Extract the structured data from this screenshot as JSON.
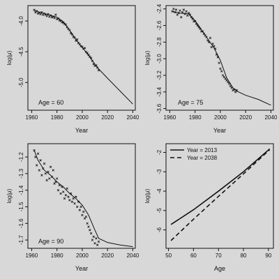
{
  "chart_data": [
    {
      "type": "scatter",
      "xlabel": "Year",
      "ylabel": "log(μ)",
      "annotation": "Age = 60",
      "xlim": [
        1957,
        2042
      ],
      "ylim": [
        -5.45,
        -3.75
      ],
      "xticks": [
        1960,
        1980,
        2000,
        2020,
        2040
      ],
      "xtick_labels": [
        "1960",
        "1980",
        "2000",
        "2020",
        "2040"
      ],
      "yticks": [
        -4.0,
        -4.5,
        -5.0
      ],
      "ytick_labels": [
        "-4.0",
        "-4.5",
        "-5.0"
      ],
      "series": [
        {
          "kind": "points",
          "x": [
            1962,
            1963,
            1964,
            1965,
            1966,
            1967,
            1968,
            1969,
            1970,
            1971,
            1972,
            1973,
            1974,
            1975,
            1976,
            1977,
            1978,
            1979,
            1980,
            1981,
            1982,
            1983,
            1984,
            1985,
            1986,
            1987,
            1988,
            1989,
            1990,
            1991,
            1992,
            1993,
            1994,
            1995,
            1996,
            1997,
            1998,
            1999,
            2000,
            2001,
            2002,
            2003,
            2004,
            2005,
            2006,
            2007,
            2008,
            2009,
            2010,
            2011,
            2012,
            2013
          ],
          "y": [
            -3.82,
            -3.86,
            -3.84,
            -3.88,
            -3.87,
            -3.89,
            -3.86,
            -3.9,
            -3.88,
            -3.9,
            -3.92,
            -3.89,
            -3.93,
            -3.91,
            -3.94,
            -3.93,
            -3.95,
            -3.9,
            -3.97,
            -3.96,
            -3.99,
            -4.0,
            -4.02,
            -4.03,
            -4.05,
            -4.06,
            -4.1,
            -4.13,
            -4.15,
            -4.2,
            -4.22,
            -4.26,
            -4.27,
            -4.32,
            -4.3,
            -4.36,
            -4.38,
            -4.41,
            -4.42,
            -4.45,
            -4.44,
            -4.5,
            -4.52,
            -4.55,
            -4.58,
            -4.6,
            -4.65,
            -4.7,
            -4.73,
            -4.72,
            -4.76,
            -4.8
          ]
        },
        {
          "kind": "line",
          "x": [
            1962,
            1970,
            1980,
            1985,
            1990,
            1995,
            2000,
            2005,
            2010,
            2013,
            2020,
            2030,
            2040
          ],
          "y": [
            -3.83,
            -3.88,
            -3.94,
            -4.01,
            -4.15,
            -4.3,
            -4.43,
            -4.56,
            -4.7,
            -4.78,
            -4.93,
            -5.14,
            -5.35
          ]
        }
      ]
    },
    {
      "type": "scatter",
      "xlabel": "Year",
      "ylabel": "log(μ)",
      "annotation": "Age = 75",
      "xlim": [
        1957,
        2042
      ],
      "ylim": [
        -3.62,
        -2.36
      ],
      "xticks": [
        1960,
        1980,
        2000,
        2020,
        2040
      ],
      "xtick_labels": [
        "1960",
        "1980",
        "2000",
        "2020",
        "2040"
      ],
      "yticks": [
        -2.4,
        -2.6,
        -2.8,
        -3.0,
        -3.2,
        -3.4,
        -3.6
      ],
      "ytick_labels": [
        "-2.4",
        "-2.6",
        "-2.8",
        "-3.0",
        "-3.2",
        "-3.4",
        "-3.6"
      ],
      "series": [
        {
          "kind": "points",
          "x": [
            1962,
            1963,
            1964,
            1965,
            1966,
            1967,
            1968,
            1969,
            1970,
            1971,
            1972,
            1973,
            1974,
            1975,
            1976,
            1977,
            1978,
            1979,
            1980,
            1981,
            1982,
            1983,
            1984,
            1985,
            1986,
            1987,
            1988,
            1989,
            1990,
            1991,
            1992,
            1993,
            1994,
            1995,
            1996,
            1997,
            1998,
            1999,
            2000,
            2001,
            2002,
            2003,
            2004,
            2005,
            2006,
            2007,
            2008,
            2009,
            2010,
            2011,
            2012,
            2013
          ],
          "y": [
            -2.43,
            -2.4,
            -2.44,
            -2.41,
            -2.47,
            -2.45,
            -2.42,
            -2.5,
            -2.44,
            -2.41,
            -2.46,
            -2.43,
            -2.48,
            -2.45,
            -2.47,
            -2.5,
            -2.52,
            -2.55,
            -2.55,
            -2.58,
            -2.6,
            -2.62,
            -2.64,
            -2.67,
            -2.67,
            -2.7,
            -2.72,
            -2.74,
            -2.78,
            -2.8,
            -2.75,
            -2.86,
            -2.82,
            -2.85,
            -2.88,
            -2.95,
            -2.98,
            -3.05,
            -3.12,
            -3.15,
            -3.2,
            -3.22,
            -3.24,
            -3.26,
            -3.28,
            -3.3,
            -3.33,
            -3.35,
            -3.38,
            -3.37,
            -3.4,
            -3.38
          ]
        },
        {
          "kind": "line",
          "x": [
            1962,
            1968,
            1975,
            1980,
            1985,
            1990,
            1995,
            2000,
            2005,
            2010,
            2013,
            2020,
            2030,
            2040
          ],
          "y": [
            -2.43,
            -2.45,
            -2.46,
            -2.54,
            -2.65,
            -2.76,
            -2.87,
            -3.02,
            -3.23,
            -3.35,
            -3.39,
            -3.44,
            -3.49,
            -3.56
          ]
        }
      ]
    },
    {
      "type": "scatter",
      "xlabel": "Year",
      "ylabel": "log(μ)",
      "annotation": "Age = 90",
      "xlim": [
        1957,
        2042
      ],
      "ylim": [
        -1.75,
        -1.12
      ],
      "xticks": [
        1960,
        1980,
        2000,
        2020,
        2040
      ],
      "xtick_labels": [
        "1960",
        "1980",
        "2000",
        "2020",
        "2040"
      ],
      "yticks": [
        -1.2,
        -1.3,
        -1.4,
        -1.5,
        -1.6,
        -1.7
      ],
      "ytick_labels": [
        "-1.2",
        "-1.3",
        "-1.4",
        "-1.5",
        "-1.6",
        "-1.7"
      ],
      "series": [
        {
          "kind": "points",
          "x": [
            1962,
            1963,
            1964,
            1965,
            1966,
            1967,
            1968,
            1969,
            1970,
            1971,
            1972,
            1973,
            1974,
            1975,
            1976,
            1977,
            1978,
            1979,
            1980,
            1981,
            1982,
            1983,
            1984,
            1985,
            1986,
            1987,
            1988,
            1989,
            1990,
            1991,
            1992,
            1993,
            1994,
            1995,
            1996,
            1997,
            1998,
            1999,
            2000,
            2001,
            2002,
            2003,
            2004,
            2005,
            2006,
            2007,
            2008,
            2009,
            2010,
            2011,
            2012,
            2013
          ],
          "y": [
            -1.16,
            -1.2,
            -1.25,
            -1.18,
            -1.28,
            -1.22,
            -1.31,
            -1.27,
            -1.24,
            -1.3,
            -1.34,
            -1.29,
            -1.33,
            -1.26,
            -1.32,
            -1.28,
            -1.36,
            -1.35,
            -1.33,
            -1.4,
            -1.37,
            -1.42,
            -1.38,
            -1.41,
            -1.45,
            -1.43,
            -1.39,
            -1.44,
            -1.46,
            -1.42,
            -1.47,
            -1.45,
            -1.48,
            -1.44,
            -1.5,
            -1.47,
            -1.52,
            -1.5,
            -1.55,
            -1.53,
            -1.57,
            -1.56,
            -1.6,
            -1.62,
            -1.64,
            -1.66,
            -1.7,
            -1.68,
            -1.72,
            -1.69,
            -1.73,
            -1.71
          ]
        },
        {
          "kind": "line",
          "x": [
            1962,
            1965,
            1970,
            1975,
            1980,
            1985,
            1990,
            1995,
            2000,
            2005,
            2010,
            2013,
            2020,
            2030,
            2040
          ],
          "y": [
            -1.16,
            -1.22,
            -1.28,
            -1.31,
            -1.35,
            -1.38,
            -1.42,
            -1.45,
            -1.49,
            -1.55,
            -1.64,
            -1.69,
            -1.715,
            -1.73,
            -1.74
          ]
        }
      ]
    },
    {
      "type": "line",
      "xlabel": "Age",
      "ylabel": "log(μ)",
      "xlim": [
        49,
        92
      ],
      "ylim": [
        -6.95,
        -1.55
      ],
      "xticks": [
        50,
        60,
        70,
        80,
        90
      ],
      "xtick_labels": [
        "50",
        "60",
        "70",
        "80",
        "90"
      ],
      "yticks": [
        -2,
        -3,
        -4,
        -5,
        -6
      ],
      "ytick_labels": [
        "-2",
        "-3",
        "-4",
        "-5",
        "-6"
      ],
      "legend_position": "top-left",
      "series": [
        {
          "name": "Year = 2013",
          "style": "solid",
          "x": [
            51,
            60,
            70,
            80,
            90.5
          ],
          "y": [
            -5.72,
            -4.96,
            -4.0,
            -3.0,
            -1.82
          ]
        },
        {
          "name": "Year = 2038",
          "style": "dashed",
          "x": [
            51,
            60,
            70,
            80,
            90.5
          ],
          "y": [
            -6.55,
            -5.45,
            -4.27,
            -3.11,
            -1.86
          ]
        }
      ]
    }
  ]
}
